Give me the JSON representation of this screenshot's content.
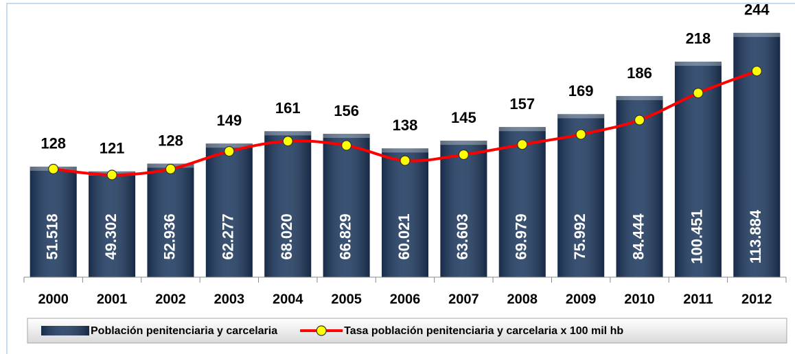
{
  "chart_data": {
    "type": "bar_line",
    "categories": [
      "2000",
      "2001",
      "2002",
      "2003",
      "2004",
      "2005",
      "2006",
      "2007",
      "2008",
      "2009",
      "2010",
      "2011",
      "2012"
    ],
    "series": [
      {
        "name": "Población penitenciaria y carcelaria",
        "type": "bar",
        "color": "#1f3a60",
        "values": [
          51518,
          49302,
          52936,
          62277,
          68020,
          66829,
          60021,
          63603,
          69979,
          75992,
          84444,
          100451,
          113884
        ],
        "value_labels": [
          "51.518",
          "49.302",
          "52.936",
          "62.277",
          "68.020",
          "66.829",
          "60.021",
          "63.603",
          "69.979",
          "75.992",
          "84.444",
          "100.451",
          "113.884"
        ]
      },
      {
        "name": "Tasa población penitenciaria y carcelaria x 100 mil hb",
        "type": "line",
        "axis": "y2",
        "color": "#ff0000",
        "marker_color": "#ffff00",
        "values": [
          128,
          121,
          128,
          149,
          161,
          156,
          138,
          145,
          157,
          169,
          186,
          218,
          244
        ]
      }
    ],
    "ylim": [
      0,
      126000
    ],
    "y2lim": [
      0,
      320
    ],
    "legend": "bottom"
  }
}
